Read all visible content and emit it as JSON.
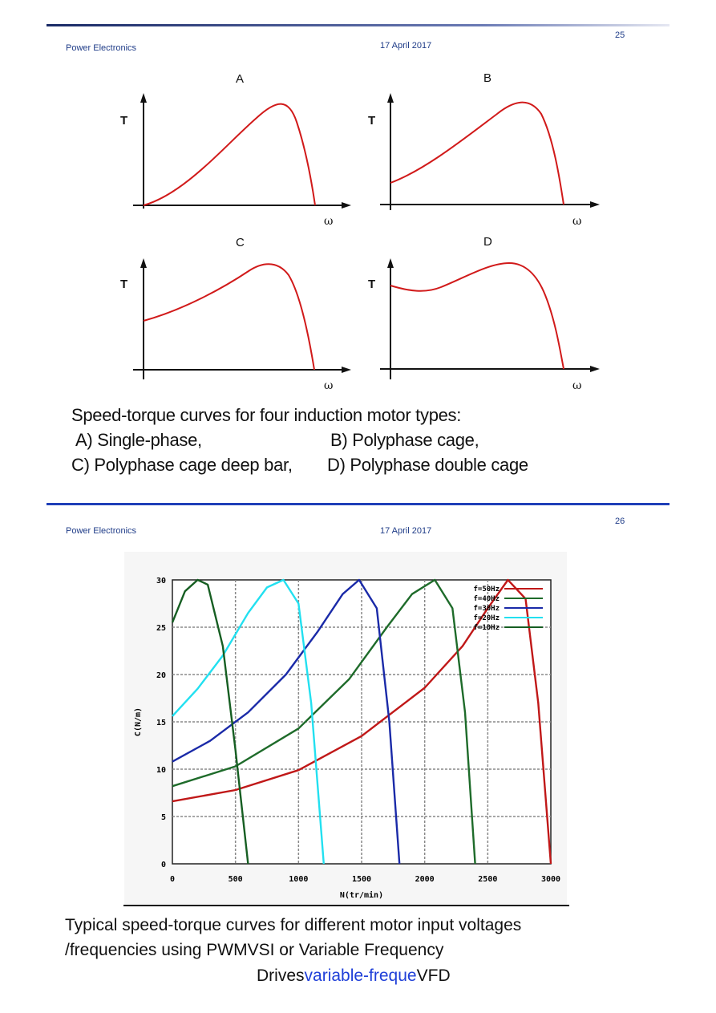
{
  "slide1": {
    "header_left": "Power Electronics",
    "header_date": "17 April 2017",
    "page_number": "25",
    "panels": [
      {
        "label": "A",
        "y_axis": "T",
        "x_axis": "ω"
      },
      {
        "label": "B",
        "y_axis": "T",
        "x_axis": "ω"
      },
      {
        "label": "C",
        "y_axis": "T",
        "x_axis": "ω"
      },
      {
        "label": "D",
        "y_axis": "T",
        "x_axis": "ω"
      }
    ],
    "caption_line1": "Speed-torque curves for four induction motor types:",
    "caption_a": "A) Single-phase,",
    "caption_b": "B) Polyphase cage,",
    "caption_c": "C) Polyphase cage deep bar,",
    "caption_d": "D) Polyphase double cage"
  },
  "slide2": {
    "header_left": "Power Electronics",
    "header_date": "17 April 2017",
    "page_number": "26",
    "caption_line1": "Typical speed-torque curves for different motor input voltages",
    "caption_line2": "/frequencies using PWMVSI or  Variable Frequency",
    "caption_line3_a": "Drives",
    "caption_line3_b": "variable-freque",
    "caption_line3_c": "VFD"
  },
  "colors": {
    "curve_red": "#d11a1a",
    "header_blue": "#1f3c88",
    "series_50": "#c01818",
    "series_40": "#1e6b2a",
    "series_30": "#1a2aa8",
    "series_20": "#22e0f0",
    "series_10": "#165e22"
  },
  "chart_data": {
    "type": "line",
    "title": "",
    "xlabel": "N(tr/min)",
    "ylabel": "C(N/m)",
    "xlim": [
      0,
      3000
    ],
    "ylim": [
      0,
      30
    ],
    "xticks": [
      0,
      500,
      1000,
      1500,
      2000,
      2500,
      3000
    ],
    "yticks": [
      0,
      5,
      10,
      15,
      20,
      25,
      30
    ],
    "grid": true,
    "legend_position": "top-right",
    "series": [
      {
        "name": "f=50Hz",
        "color": "#c01818",
        "x": [
          0,
          500,
          1000,
          1500,
          2000,
          2300,
          2500,
          2660,
          2800,
          2900,
          3000
        ],
        "y": [
          6.6,
          7.8,
          9.9,
          13.5,
          18.6,
          23.0,
          27.0,
          30.0,
          28.0,
          17.0,
          0
        ]
      },
      {
        "name": "f=40Hz",
        "color": "#1e6b2a",
        "x": [
          0,
          500,
          1000,
          1400,
          1700,
          1900,
          2080,
          2220,
          2320,
          2400
        ],
        "y": [
          8.2,
          10.3,
          14.3,
          19.5,
          25.0,
          28.5,
          30.0,
          27.0,
          16.0,
          0
        ]
      },
      {
        "name": "f=30Hz",
        "color": "#1a2aa8",
        "x": [
          0,
          300,
          600,
          900,
          1150,
          1350,
          1480,
          1620,
          1720,
          1800
        ],
        "y": [
          10.8,
          13.0,
          16.0,
          20.0,
          24.5,
          28.5,
          30.0,
          27.0,
          15.0,
          0
        ]
      },
      {
        "name": "f=20Hz",
        "color": "#22e0f0",
        "x": [
          0,
          200,
          400,
          600,
          750,
          880,
          1000,
          1100,
          1200
        ],
        "y": [
          15.6,
          18.5,
          22.0,
          26.5,
          29.2,
          30.0,
          27.5,
          17.0,
          0
        ]
      },
      {
        "name": "f=10Hz",
        "color": "#165e22",
        "x": [
          0,
          100,
          200,
          280,
          400,
          500,
          600
        ],
        "y": [
          25.5,
          28.8,
          30.0,
          29.5,
          23.0,
          12.0,
          0
        ]
      }
    ]
  }
}
